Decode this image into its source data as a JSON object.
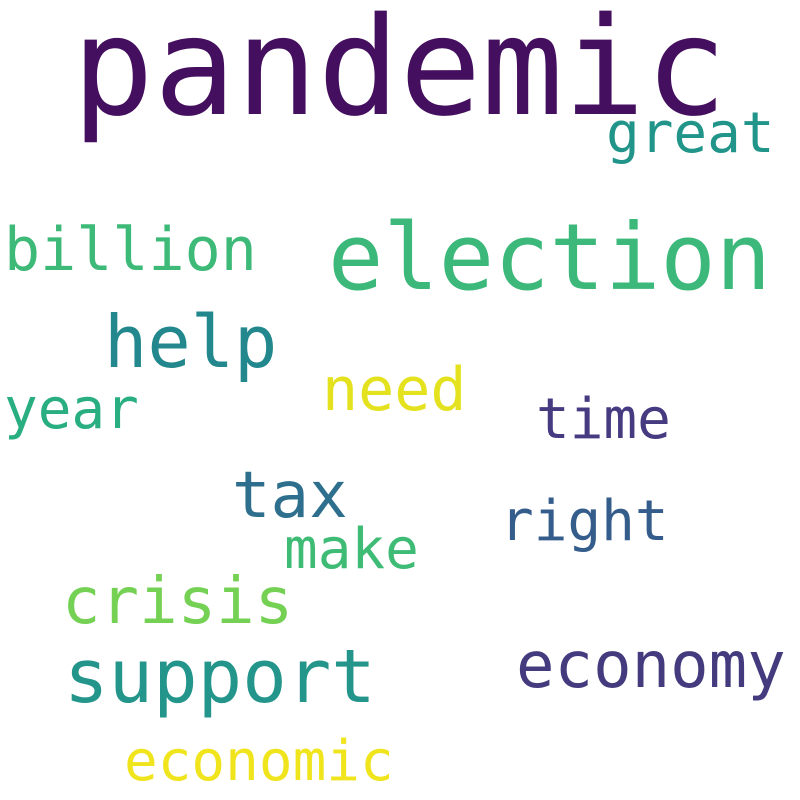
{
  "words": [
    {
      "id": "pandemic",
      "text": "pandemic",
      "color": "#440f5e"
    },
    {
      "id": "election",
      "text": "election",
      "color": "#3bb87a"
    },
    {
      "id": "support",
      "text": "support",
      "color": "#23958a"
    },
    {
      "id": "help",
      "text": "help",
      "color": "#22888d"
    },
    {
      "id": "economy",
      "text": "economy",
      "color": "#433b7e"
    },
    {
      "id": "crisis",
      "text": "crisis",
      "color": "#74d153"
    },
    {
      "id": "billion",
      "text": "billion",
      "color": "#3db978"
    },
    {
      "id": "economic",
      "text": "economic",
      "color": "#f0e41d"
    },
    {
      "id": "make",
      "text": "make",
      "color": "#3ebb74"
    },
    {
      "id": "need",
      "text": "need",
      "color": "#e4e21e"
    },
    {
      "id": "tax",
      "text": "tax",
      "color": "#2e6f8e"
    },
    {
      "id": "right",
      "text": "right",
      "color": "#355d8c"
    },
    {
      "id": "time",
      "text": "time",
      "color": "#463a80"
    },
    {
      "id": "great",
      "text": "great",
      "color": "#22958a"
    },
    {
      "id": "year",
      "text": "year",
      "color": "#28ae80"
    }
  ]
}
